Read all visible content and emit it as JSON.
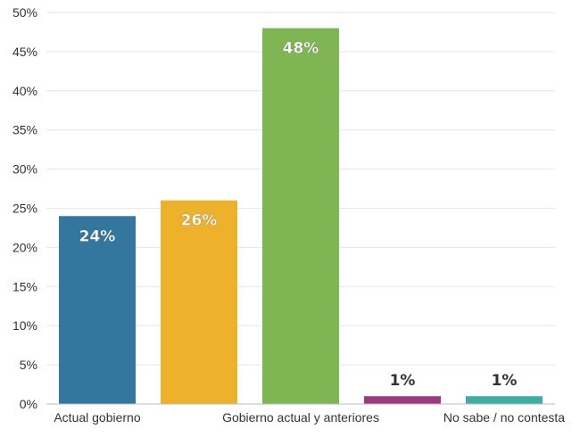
{
  "chart_data": {
    "type": "bar",
    "categories": [
      "Actual gobierno",
      "",
      "Gobierno actual y anteriores",
      "",
      "No sabe / no contesta"
    ],
    "values": [
      24,
      26,
      48,
      1,
      1
    ],
    "data_labels": [
      "24%",
      "26%",
      "48%",
      "1%",
      "1%"
    ],
    "colors": [
      "#33779f",
      "#eeb12c",
      "#7fb553",
      "#9c3a7e",
      "#3fada6"
    ],
    "label_inside": [
      true,
      true,
      true,
      false,
      false
    ],
    "yticks": [
      "0%",
      "5%",
      "10%",
      "15%",
      "20%",
      "25%",
      "30%",
      "35%",
      "40%",
      "45%",
      "50%"
    ],
    "ylim": [
      0,
      50
    ],
    "grid": true,
    "title": "",
    "xlabel": "",
    "ylabel": ""
  }
}
